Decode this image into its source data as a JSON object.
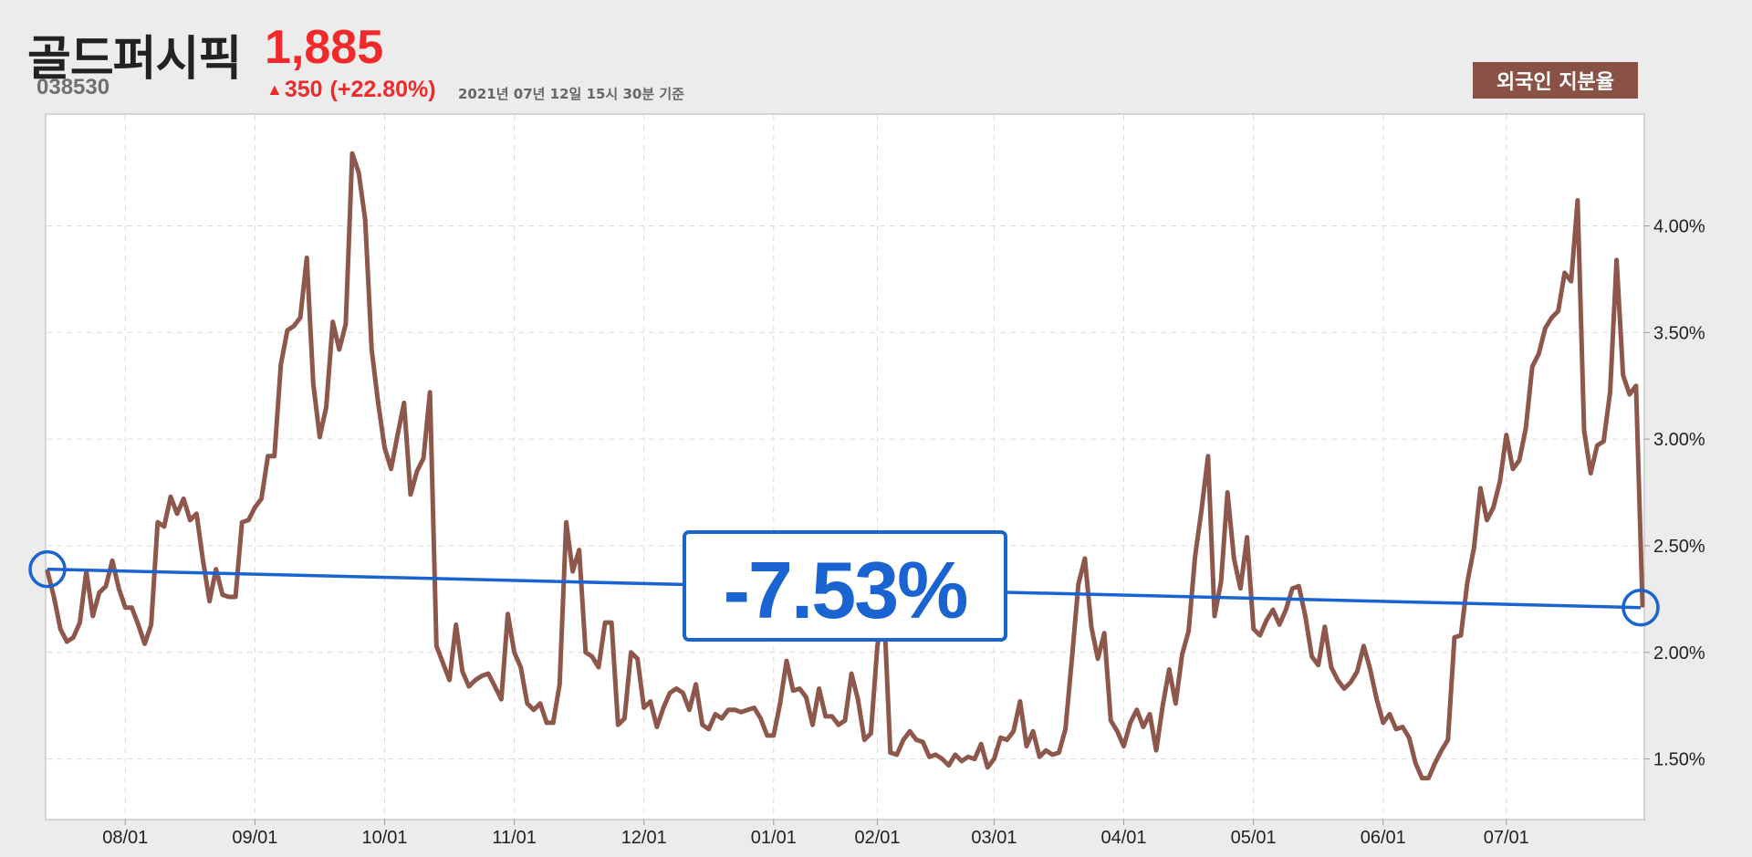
{
  "header": {
    "company_name": "골드퍼시픽",
    "ticker": "038530",
    "price": "1,885",
    "change_arrow": "▲",
    "change_value": "350",
    "change_pct": "(+22.80%)",
    "as_of": "2021년 07년 12일 15시 30분 기준",
    "badge": "외국인 지분율"
  },
  "colors": {
    "line": "#8e574b",
    "trend": "#1a64d2",
    "up": "#f02a2a",
    "badge": "#8a5146"
  },
  "chart_data": {
    "type": "line",
    "title": "",
    "xlabel": "",
    "ylabel": "",
    "y_axis_side": "right",
    "ylim": [
      1.22,
      4.52
    ],
    "y_ticks": [
      1.5,
      2.0,
      2.5,
      3.0,
      3.5,
      4.0
    ],
    "y_tick_labels": [
      "1.50%",
      "2.00%",
      "2.50%",
      "3.00%",
      "3.50%",
      "4.00%"
    ],
    "x_tick_labels": [
      "08/01",
      "09/01",
      "10/01",
      "11/01",
      "12/01",
      "01/01",
      "02/01",
      "03/01",
      "04/01",
      "05/01",
      "06/01",
      "07/01"
    ],
    "x_tick_index": [
      12,
      32,
      52,
      72,
      92,
      112,
      128,
      146,
      166,
      186,
      206,
      225
    ],
    "grid": true,
    "series": [
      {
        "values": [
          2.38,
          2.26,
          2.11,
          2.05,
          2.07,
          2.14,
          2.38,
          2.17,
          2.28,
          2.31,
          2.43,
          2.3,
          2.21,
          2.21,
          2.13,
          2.04,
          2.13,
          2.61,
          2.59,
          2.73,
          2.65,
          2.72,
          2.62,
          2.65,
          2.43,
          2.24,
          2.39,
          2.27,
          2.26,
          2.26,
          2.61,
          2.62,
          2.68,
          2.72,
          2.92,
          2.92,
          3.35,
          3.51,
          3.53,
          3.57,
          3.85,
          3.26,
          3.01,
          3.15,
          3.55,
          3.42,
          3.54,
          4.34,
          4.25,
          4.03,
          3.42,
          3.17,
          2.96,
          2.86,
          3.02,
          3.17,
          2.74,
          2.85,
          2.91,
          3.22,
          2.03,
          1.95,
          1.87,
          2.13,
          1.91,
          1.84,
          1.87,
          1.89,
          1.9,
          1.84,
          1.78,
          2.18,
          2.0,
          1.93,
          1.76,
          1.73,
          1.76,
          1.67,
          1.67,
          1.85,
          2.61,
          2.38,
          2.48,
          2.0,
          1.98,
          1.93,
          2.14,
          2.14,
          1.66,
          1.69,
          2.0,
          1.97,
          1.74,
          1.77,
          1.65,
          1.74,
          1.81,
          1.83,
          1.81,
          1.73,
          1.85,
          1.66,
          1.64,
          1.71,
          1.69,
          1.73,
          1.73,
          1.72,
          1.73,
          1.74,
          1.69,
          1.61,
          1.61,
          1.76,
          1.96,
          1.82,
          1.83,
          1.79,
          1.66,
          1.83,
          1.7,
          1.7,
          1.66,
          1.68,
          1.9,
          1.78,
          1.59,
          1.62,
          2.03,
          2.22,
          1.53,
          1.52,
          1.59,
          1.63,
          1.59,
          1.58,
          1.51,
          1.52,
          1.5,
          1.47,
          1.52,
          1.49,
          1.51,
          1.5,
          1.57,
          1.46,
          1.5,
          1.6,
          1.59,
          1.63,
          1.77,
          1.56,
          1.63,
          1.51,
          1.54,
          1.52,
          1.53,
          1.64,
          1.97,
          2.32,
          2.44,
          2.12,
          1.97,
          2.09,
          1.68,
          1.63,
          1.56,
          1.67,
          1.73,
          1.65,
          1.71,
          1.54,
          1.75,
          1.92,
          1.76,
          1.99,
          2.1,
          2.45,
          2.67,
          2.92,
          2.17,
          2.33,
          2.75,
          2.44,
          2.3,
          2.54,
          2.11,
          2.08,
          2.15,
          2.2,
          2.13,
          2.2,
          2.3,
          2.31,
          2.17,
          1.98,
          1.94,
          2.12,
          1.93,
          1.87,
          1.83,
          1.86,
          1.91,
          2.03,
          1.92,
          1.78,
          1.67,
          1.71,
          1.64,
          1.65,
          1.6,
          1.48,
          1.41,
          1.41,
          1.48,
          1.54,
          1.59,
          2.07,
          2.08,
          2.33,
          2.49,
          2.77,
          2.62,
          2.68,
          2.8,
          3.02,
          2.86,
          2.9,
          3.05,
          3.34,
          3.4,
          3.52,
          3.57,
          3.6,
          3.78,
          3.74,
          4.12,
          3.04,
          2.84,
          2.97,
          2.99,
          3.22,
          3.84,
          3.3,
          3.21,
          3.25,
          2.22
        ]
      }
    ],
    "trend": {
      "start_value": 2.39,
      "end_value": 2.21,
      "label": "-7.53%"
    }
  }
}
